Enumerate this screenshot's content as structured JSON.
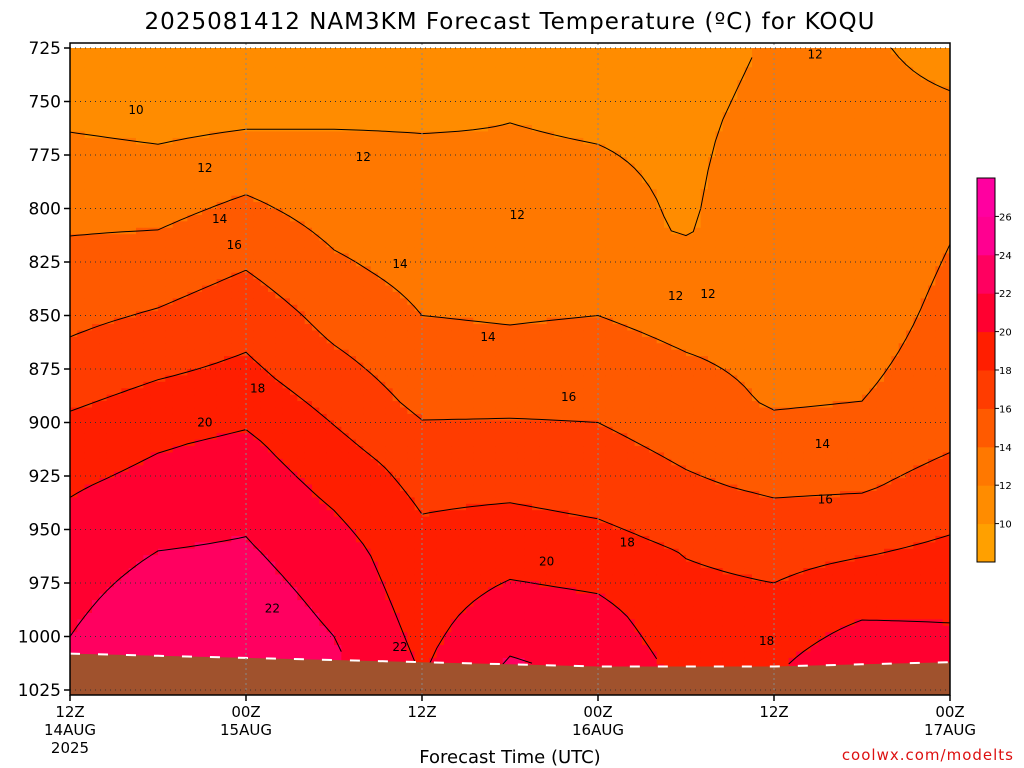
{
  "chart_data": {
    "type": "area",
    "title": "2025081412 NAM3KM Forecast Temperature (ºC) for KOQU",
    "xlabel": "Forecast Time (UTC)",
    "ylabel": "",
    "y_axis": {
      "reversed": true,
      "range": [
        725,
        1025
      ],
      "ticks": [
        "725",
        "750",
        "775",
        "800",
        "825",
        "850",
        "875",
        "900",
        "925",
        "950",
        "975",
        "1000",
        "1025"
      ]
    },
    "x_axis": {
      "range_hours": [
        0,
        60
      ],
      "ticks": [
        {
          "hour": 0,
          "label": "12Z",
          "sub": "14AUG",
          "year": "2025"
        },
        {
          "hour": 12,
          "label": "00Z",
          "sub": "15AUG",
          "year": ""
        },
        {
          "hour": 24,
          "label": "12Z",
          "sub": "",
          "year": ""
        },
        {
          "hour": 36,
          "label": "00Z",
          "sub": "16AUG",
          "year": ""
        },
        {
          "hour": 48,
          "label": "12Z",
          "sub": "",
          "year": ""
        },
        {
          "hour": 60,
          "label": "00Z",
          "sub": "17AUG",
          "year": ""
        }
      ]
    },
    "grid": true,
    "colorbar": {
      "levels": [
        8,
        10,
        12,
        14,
        16,
        18,
        20,
        22,
        24,
        26,
        28
      ],
      "labels": [
        "10",
        "12",
        "14",
        "16",
        "18",
        "20",
        "22",
        "24",
        "26"
      ],
      "colors": [
        "#ffa000",
        "#ff8c00",
        "#ff7800",
        "#ff5a00",
        "#ff3c00",
        "#ff1e00",
        "#ff0030",
        "#ff0060",
        "#ff0090",
        "#ff00a0"
      ]
    },
    "contours": [
      {
        "level": 10,
        "labels": [
          {
            "text": "10",
            "x": 4.5,
            "y": 754
          }
        ]
      },
      {
        "level": 12,
        "labels": [
          {
            "text": "12",
            "x": 9.2,
            "y": 781
          },
          {
            "text": "12",
            "x": 20,
            "y": 776
          },
          {
            "text": "12",
            "x": 30.5,
            "y": 803
          },
          {
            "text": "12",
            "x": 41.3,
            "y": 841
          },
          {
            "text": "12",
            "x": 43.5,
            "y": 840
          },
          {
            "text": "12",
            "x": 50.8,
            "y": 728
          }
        ]
      },
      {
        "level": 14,
        "labels": [
          {
            "text": "14",
            "x": 10.2,
            "y": 805
          },
          {
            "text": "14",
            "x": 22.5,
            "y": 826
          },
          {
            "text": "14",
            "x": 28.5,
            "y": 860
          },
          {
            "text": "14",
            "x": 51.3,
            "y": 910
          }
        ]
      },
      {
        "level": 16,
        "labels": [
          {
            "text": "16",
            "x": 11.2,
            "y": 817
          },
          {
            "text": "16",
            "x": 34,
            "y": 888
          },
          {
            "text": "16",
            "x": 51.5,
            "y": 936
          }
        ]
      },
      {
        "level": 18,
        "labels": [
          {
            "text": "18",
            "x": 12.8,
            "y": 884
          },
          {
            "text": "18",
            "x": 38,
            "y": 956
          },
          {
            "text": "18",
            "x": 47.5,
            "y": 1002
          }
        ]
      },
      {
        "level": 20,
        "labels": [
          {
            "text": "20",
            "x": 9.2,
            "y": 900
          },
          {
            "text": "20",
            "x": 32.5,
            "y": 965
          }
        ]
      },
      {
        "level": 22,
        "labels": [
          {
            "text": "22",
            "x": 13.8,
            "y": 987
          },
          {
            "text": "22",
            "x": 22.5,
            "y": 1005
          }
        ]
      }
    ],
    "temperature_profiles": [
      {
        "hour": 0,
        "temps": [
          {
            "p": 725,
            "t": 10.5
          },
          {
            "p": 760,
            "t": 11.8
          },
          {
            "p": 790,
            "t": 13.2
          },
          {
            "p": 830,
            "t": 14.6
          },
          {
            "p": 860,
            "t": 16.0
          },
          {
            "p": 900,
            "t": 18.3
          },
          {
            "p": 930,
            "t": 19.8
          },
          {
            "p": 960,
            "t": 21.0
          },
          {
            "p": 1000,
            "t": 22.0
          },
          {
            "p": 1008,
            "t": 22.5
          }
        ]
      },
      {
        "hour": 6,
        "temps": [
          {
            "p": 725,
            "t": 10.2
          },
          {
            "p": 760,
            "t": 11.5
          },
          {
            "p": 790,
            "t": 13.0
          },
          {
            "p": 820,
            "t": 14.5
          },
          {
            "p": 850,
            "t": 16.2
          },
          {
            "p": 880,
            "t": 18.0
          },
          {
            "p": 910,
            "t": 19.8
          },
          {
            "p": 940,
            "t": 21.2
          },
          {
            "p": 980,
            "t": 22.8
          },
          {
            "p": 1008,
            "t": 23.8
          }
        ]
      },
      {
        "hour": 12,
        "temps": [
          {
            "p": 725,
            "t": 10.3
          },
          {
            "p": 760,
            "t": 11.8
          },
          {
            "p": 790,
            "t": 13.8
          },
          {
            "p": 820,
            "t": 15.5
          },
          {
            "p": 850,
            "t": 17.2
          },
          {
            "p": 880,
            "t": 18.6
          },
          {
            "p": 910,
            "t": 20.4
          },
          {
            "p": 940,
            "t": 21.6
          },
          {
            "p": 980,
            "t": 22.8
          },
          {
            "p": 1008,
            "t": 23.5
          }
        ]
      },
      {
        "hour": 18,
        "temps": [
          {
            "p": 725,
            "t": 10.6
          },
          {
            "p": 760,
            "t": 11.9
          },
          {
            "p": 790,
            "t": 12.9
          },
          {
            "p": 830,
            "t": 14.4
          },
          {
            "p": 860,
            "t": 15.8
          },
          {
            "p": 890,
            "t": 17.4
          },
          {
            "p": 920,
            "t": 19.0
          },
          {
            "p": 960,
            "t": 20.9
          },
          {
            "p": 1000,
            "t": 22.0
          },
          {
            "p": 1010,
            "t": 22.3
          }
        ]
      },
      {
        "hour": 24,
        "temps": [
          {
            "p": 725,
            "t": 11.3
          },
          {
            "p": 760,
            "t": 11.9
          },
          {
            "p": 800,
            "t": 12.7
          },
          {
            "p": 850,
            "t": 14.0
          },
          {
            "p": 890,
            "t": 15.5
          },
          {
            "p": 920,
            "t": 17.2
          },
          {
            "p": 960,
            "t": 18.6
          },
          {
            "p": 1000,
            "t": 19.5
          },
          {
            "p": 1012,
            "t": 19.8
          }
        ]
      },
      {
        "hour": 30,
        "temps": [
          {
            "p": 725,
            "t": 11.5
          },
          {
            "p": 760,
            "t": 12.0
          },
          {
            "p": 810,
            "t": 12.4
          },
          {
            "p": 860,
            "t": 14.2
          },
          {
            "p": 890,
            "t": 15.6
          },
          {
            "p": 930,
            "t": 17.6
          },
          {
            "p": 960,
            "t": 19.2
          },
          {
            "p": 990,
            "t": 21.0
          },
          {
            "p": 1013,
            "t": 22.2
          }
        ]
      },
      {
        "hour": 36,
        "temps": [
          {
            "p": 725,
            "t": 11.4
          },
          {
            "p": 760,
            "t": 11.9
          },
          {
            "p": 810,
            "t": 12.4
          },
          {
            "p": 850,
            "t": 14.0
          },
          {
            "p": 890,
            "t": 15.6
          },
          {
            "p": 930,
            "t": 17.2
          },
          {
            "p": 960,
            "t": 18.8
          },
          {
            "p": 990,
            "t": 20.6
          },
          {
            "p": 1013,
            "t": 21.5
          }
        ]
      },
      {
        "hour": 42,
        "temps": [
          {
            "p": 725,
            "t": 11.6
          },
          {
            "p": 760,
            "t": 11.8
          },
          {
            "p": 810,
            "t": 11.9
          },
          {
            "p": 850,
            "t": 13.4
          },
          {
            "p": 890,
            "t": 14.8
          },
          {
            "p": 930,
            "t": 16.3
          },
          {
            "p": 960,
            "t": 17.9
          },
          {
            "p": 1000,
            "t": 19.0
          },
          {
            "p": 1014,
            "t": 19.4
          }
        ]
      },
      {
        "hour": 48,
        "temps": [
          {
            "p": 725,
            "t": 12.1
          },
          {
            "p": 760,
            "t": 12.3
          },
          {
            "p": 800,
            "t": 12.6
          },
          {
            "p": 850,
            "t": 13.3
          },
          {
            "p": 890,
            "t": 13.8
          },
          {
            "p": 930,
            "t": 15.7
          },
          {
            "p": 960,
            "t": 17.4
          },
          {
            "p": 1000,
            "t": 19.0
          },
          {
            "p": 1014,
            "t": 19.7
          }
        ]
      },
      {
        "hour": 54,
        "temps": [
          {
            "p": 725,
            "t": 12.2
          },
          {
            "p": 760,
            "t": 12.4
          },
          {
            "p": 800,
            "t": 12.8
          },
          {
            "p": 850,
            "t": 13.3
          },
          {
            "p": 890,
            "t": 14.0
          },
          {
            "p": 930,
            "t": 15.8
          },
          {
            "p": 960,
            "t": 17.8
          },
          {
            "p": 990,
            "t": 19.8
          },
          {
            "p": 1013,
            "t": 21.8
          }
        ]
      },
      {
        "hour": 60,
        "temps": [
          {
            "p": 725,
            "t": 11.6
          },
          {
            "p": 760,
            "t": 12.3
          },
          {
            "p": 800,
            "t": 13.8
          },
          {
            "p": 850,
            "t": 14.4
          },
          {
            "p": 890,
            "t": 14.8
          },
          {
            "p": 930,
            "t": 16.8
          },
          {
            "p": 960,
            "t": 18.4
          },
          {
            "p": 990,
            "t": 19.8
          },
          {
            "p": 1012,
            "t": 21.0
          }
        ]
      }
    ],
    "surface_pressure": [
      {
        "hour": 0,
        "p": 1008
      },
      {
        "hour": 6,
        "p": 1009
      },
      {
        "hour": 12,
        "p": 1010
      },
      {
        "hour": 18,
        "p": 1011
      },
      {
        "hour": 24,
        "p": 1012
      },
      {
        "hour": 30,
        "p": 1013
      },
      {
        "hour": 36,
        "p": 1014
      },
      {
        "hour": 42,
        "p": 1014
      },
      {
        "hour": 48,
        "p": 1014
      },
      {
        "hour": 54,
        "p": 1013
      },
      {
        "hour": 60,
        "p": 1012
      }
    ],
    "colors": {
      "ground": "#a0522d",
      "frame": "#000000",
      "grid": "#555555"
    }
  },
  "credit": "coolwx.com/modelts"
}
